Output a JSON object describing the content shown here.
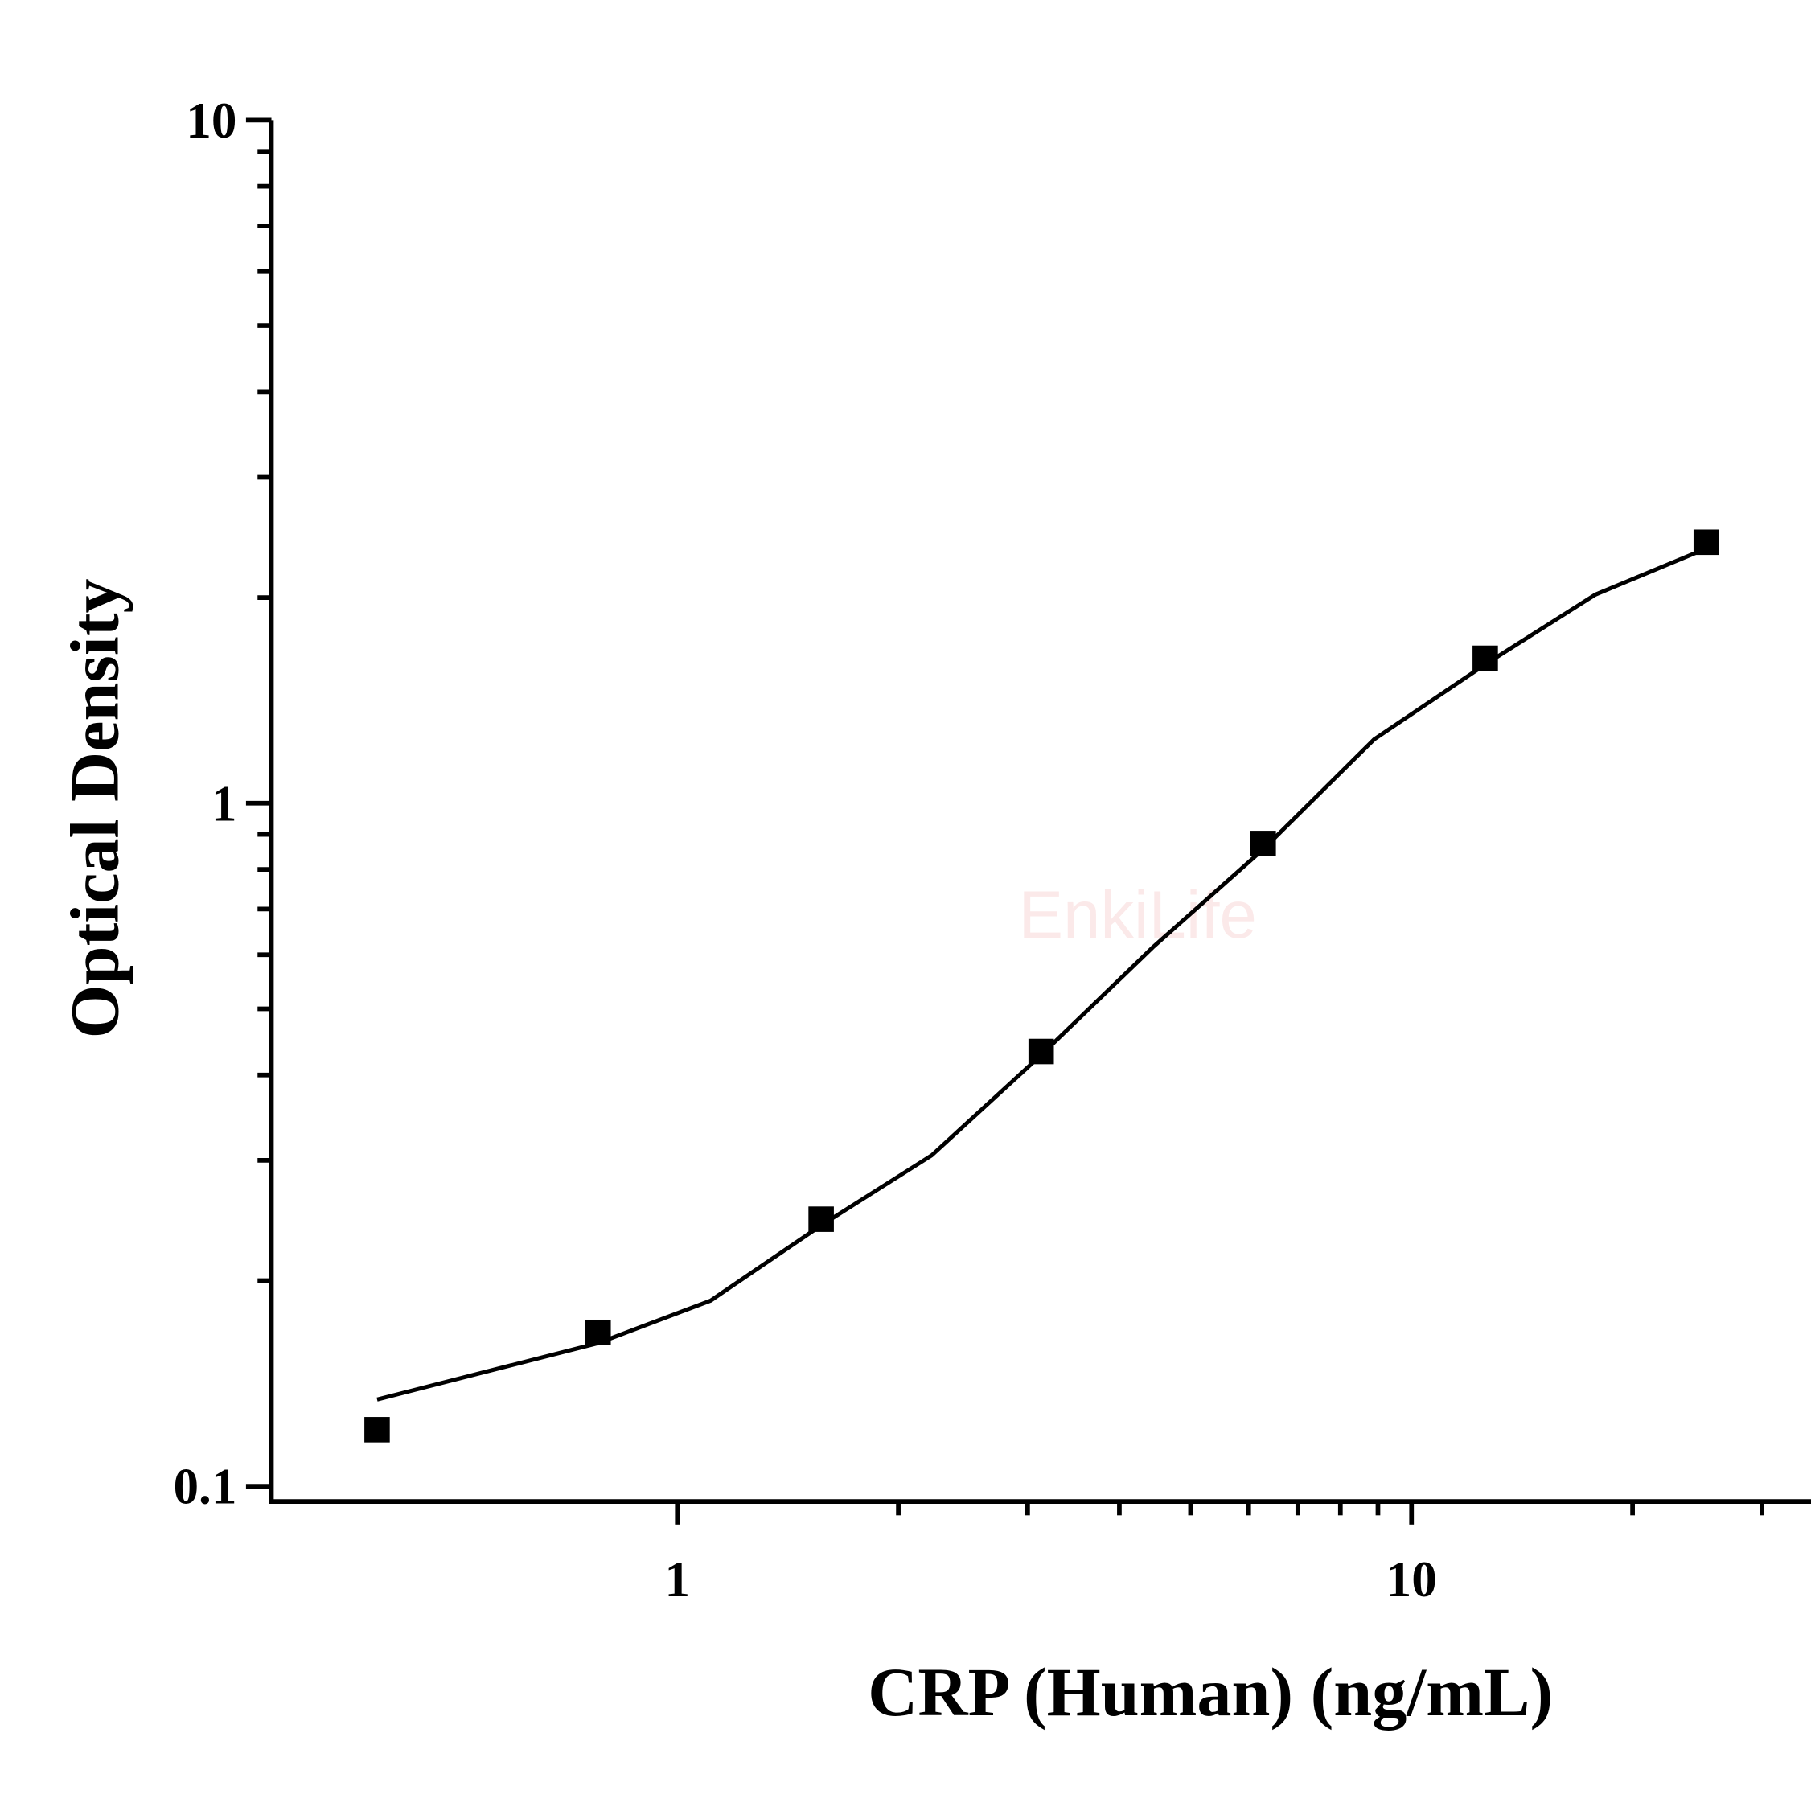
{
  "chart_data": {
    "type": "scatter",
    "x_label": "CRP (Human) (ng/mL)",
    "y_label": "Optical Density",
    "watermark": "EnkiLife",
    "xscale": "log",
    "yscale": "log",
    "xlim": [
      0.28,
      35
    ],
    "ylim": [
      0.095,
      10
    ],
    "xticks": [
      1,
      10
    ],
    "yticks": [
      0.1,
      1,
      10
    ],
    "xminorticks": [
      2,
      3,
      4,
      5,
      6,
      7,
      8,
      9,
      20,
      30
    ],
    "yminorticks": [
      0.2,
      0.3,
      0.4,
      0.5,
      0.6,
      0.7,
      0.8,
      0.9,
      2,
      3,
      4,
      5,
      6,
      7,
      8,
      9
    ],
    "color": "#000000",
    "x": [
      0.39,
      0.78,
      1.57,
      3.13,
      6.28,
      12.6,
      25.2
    ],
    "values": [
      0.121,
      0.168,
      0.246,
      0.433,
      0.873,
      1.63,
      2.41
    ],
    "fit": {
      "x": [
        0.39,
        0.78,
        1.11,
        1.57,
        2.22,
        3.13,
        4.44,
        6.28,
        8.89,
        12.6,
        17.8,
        25.2
      ],
      "values": [
        0.134,
        0.162,
        0.187,
        0.241,
        0.305,
        0.428,
        0.615,
        0.856,
        1.24,
        1.596,
        2.02,
        2.36
      ]
    }
  }
}
